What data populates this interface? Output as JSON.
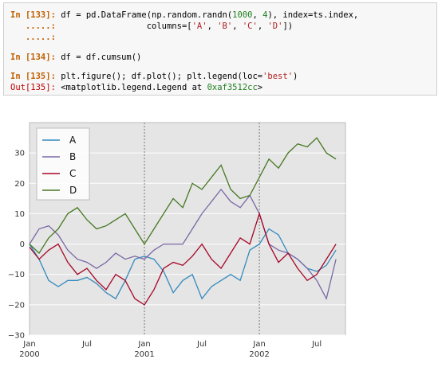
{
  "cells": {
    "l1": {
      "prompt": "In [133]:",
      "code_a": " df = pd.DataFrame(np.random.randn(",
      "n1": "1000",
      "code_b": ", ",
      "n2": "4",
      "code_c": "), index=ts.index,"
    },
    "l2": {
      "cont": "   .....:",
      "code_a": "                  columns=[",
      "s1": "'A'",
      "sep1": ", ",
      "s2": "'B'",
      "sep2": ", ",
      "s3": "'C'",
      "sep3": ", ",
      "s4": "'D'",
      "code_b": "])"
    },
    "l3": {
      "cont": "   .....:"
    },
    "l4": {
      "prompt": "In [134]:",
      "code": " df = df.cumsum()"
    },
    "l5": {
      "prompt": "In [135]:",
      "code_a": " plt.figure(); df.plot(); plt.legend(loc=",
      "s1": "'best'",
      "code_b": ")"
    },
    "l6": {
      "prompt": "Out[135]:",
      "code_a": " <matplotlib.legend.Legend at ",
      "n1": "0xaf3512cc",
      "code_b": ">"
    }
  },
  "chart_data": {
    "type": "line",
    "x": [
      "2000-01",
      "2000-02",
      "2000-03",
      "2000-04",
      "2000-05",
      "2000-06",
      "2000-07",
      "2000-08",
      "2000-09",
      "2000-10",
      "2000-11",
      "2000-12",
      "2001-01",
      "2001-02",
      "2001-03",
      "2001-04",
      "2001-05",
      "2001-06",
      "2001-07",
      "2001-08",
      "2001-09",
      "2001-10",
      "2001-11",
      "2001-12",
      "2002-01",
      "2002-02",
      "2002-03",
      "2002-04",
      "2002-05",
      "2002-06",
      "2002-07",
      "2002-08",
      "2002-09"
    ],
    "series": [
      {
        "name": "A",
        "color": "#348abd",
        "values": [
          0,
          -5,
          -12,
          -14,
          -12,
          -12,
          -11,
          -13,
          -16,
          -18,
          -12,
          -5,
          -4,
          -5,
          -9,
          -16,
          -12,
          -10,
          -18,
          -14,
          -12,
          -10,
          -12,
          -2,
          0,
          5,
          3,
          -3,
          -5,
          -8,
          -9,
          -7,
          -2
        ]
      },
      {
        "name": "B",
        "color": "#7a68a6",
        "values": [
          0,
          5,
          6,
          3,
          -2,
          -5,
          -6,
          -8,
          -6,
          -3,
          -5,
          -4,
          -5,
          -2,
          0,
          0,
          0,
          5,
          10,
          14,
          18,
          14,
          12,
          16,
          10,
          0,
          -2,
          -3,
          -5,
          -8,
          -12,
          -18,
          -5
        ]
      },
      {
        "name": "C",
        "color": "#a60628",
        "values": [
          -1,
          -5,
          -2,
          0,
          -6,
          -10,
          -8,
          -12,
          -15,
          -10,
          -12,
          -18,
          -20,
          -15,
          -8,
          -6,
          -7,
          -4,
          0,
          -5,
          -8,
          -3,
          2,
          0,
          10,
          0,
          -6,
          -3,
          -8,
          -12,
          -10,
          -5,
          0
        ]
      },
      {
        "name": "D",
        "color": "#467821",
        "values": [
          0,
          -3,
          2,
          5,
          10,
          12,
          8,
          5,
          6,
          8,
          10,
          5,
          0,
          5,
          10,
          15,
          12,
          20,
          18,
          22,
          26,
          18,
          15,
          16,
          22,
          28,
          25,
          30,
          33,
          32,
          35,
          30,
          28
        ]
      }
    ],
    "x_ticks": [
      {
        "major": "Jan",
        "minor": "2000"
      },
      {
        "major": "Jul",
        "minor": ""
      },
      {
        "major": "Jan",
        "minor": "2001"
      },
      {
        "major": "Jul",
        "minor": ""
      },
      {
        "major": "Jan",
        "minor": "2002"
      },
      {
        "major": "Jul",
        "minor": ""
      }
    ],
    "y_ticks": [
      "30",
      "20",
      "10",
      "0",
      "−10",
      "−20",
      "−30"
    ],
    "ylim": [
      -30,
      40
    ],
    "grid": "on",
    "legend": "top-left"
  }
}
